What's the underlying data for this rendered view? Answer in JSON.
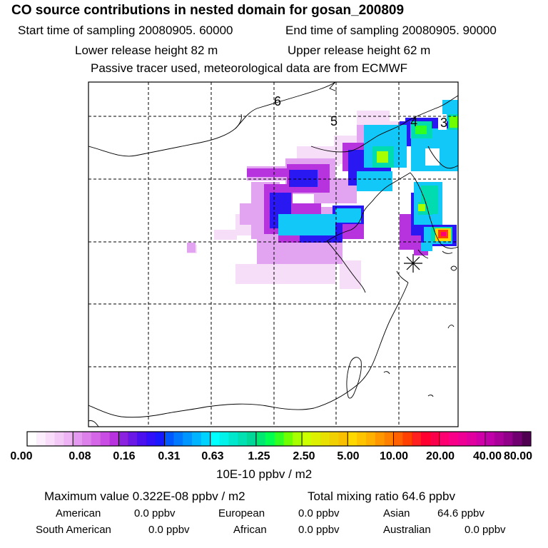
{
  "header": {
    "title": "CO  source contributions in nested domain for gosan_200809",
    "start_time": "Start time of sampling 20080905. 60000",
    "end_time": "End time of sampling 20080905. 90000",
    "lower_height": "Lower release height   82 m",
    "upper_height": "Upper release height   62 m",
    "tracer_note": "Passive tracer used, meteorological data are from ECMWF"
  },
  "chart_data": {
    "type": "heatmap",
    "title": "CO  source contributions in nested domain for gosan_200809",
    "colorbar": {
      "labels": [
        "0.00",
        "0.08",
        "0.16",
        "0.31",
        "0.63",
        "1.25",
        "2.50",
        "5.00",
        "10.00",
        "20.00",
        "40.00",
        "80.00"
      ],
      "unit": "10E-10 ppbv / m2",
      "colors": [
        [
          "#ffffff",
          "#fceefd",
          "#f8dcfa",
          "#f3c8f7",
          "#eeb3f3"
        ],
        [
          "#e699f0",
          "#de80ec",
          "#d566e8",
          "#c94de4",
          "#b833de"
        ],
        [
          "#8a22e0",
          "#6a18e6",
          "#4a10ee",
          "#3010f8",
          "#1818ff"
        ],
        [
          "#0058ff",
          "#0078ff",
          "#0096ff",
          "#00b4ff",
          "#00d2ff"
        ],
        [
          "#00ffff",
          "#00f2e8",
          "#00e8cc",
          "#00e0b0",
          "#00d898"
        ],
        [
          "#00e870",
          "#00ff50",
          "#30ff20",
          "#70ff00",
          "#a8ff00"
        ],
        [
          "#ccff00",
          "#dcf000",
          "#e8e000",
          "#f0d000",
          "#f8c000"
        ],
        [
          "#ffd800",
          "#ffc400",
          "#ffb000",
          "#ff9800",
          "#ff8000"
        ],
        [
          "#ff6000",
          "#ff4000",
          "#ff2020",
          "#ff0030",
          "#f8004a"
        ],
        [
          "#ff0070",
          "#f80088",
          "#ee0094",
          "#e000a0",
          "#d000a8"
        ],
        [
          "#c000a8",
          "#a80098",
          "#900088",
          "#700070",
          "#500050"
        ]
      ]
    },
    "region_labels": [
      "6",
      "5",
      "4",
      "3"
    ],
    "max_value": 3.22e-09,
    "total_mixing_ratio": 64.6
  },
  "summary": {
    "max_value": "Maximum value  0.322E-08 ppbv / m2",
    "total": "Total mixing ratio       64.6 ppbv",
    "rows": [
      [
        {
          "label": "American",
          "value": "0.0 ppbv"
        },
        {
          "label": "European",
          "value": "0.0 ppbv"
        },
        {
          "label": "Asian",
          "value": "64.6 ppbv"
        }
      ],
      [
        {
          "label": "South American",
          "value": "0.0 ppbv"
        },
        {
          "label": "African",
          "value": "0.0 ppbv"
        },
        {
          "label": "Australian",
          "value": "0.0 ppbv"
        }
      ]
    ]
  }
}
